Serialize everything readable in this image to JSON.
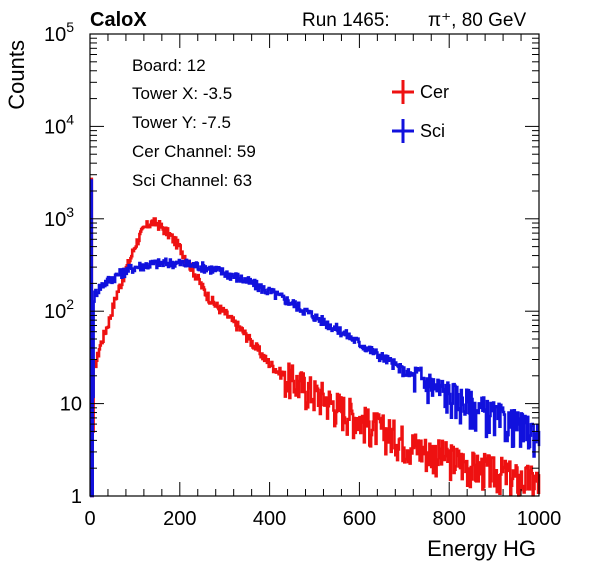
{
  "header": {
    "label": "CaloX",
    "run_text": "Run 1465:",
    "beam_text": "π⁺, 80 GeV"
  },
  "info": {
    "lines": [
      "Board: 12",
      "Tower X: -3.5",
      "Tower Y: -7.5",
      "Cer Channel: 59",
      "Sci Channel: 63"
    ]
  },
  "chart_data": {
    "type": "line",
    "xlabel": "Energy HG",
    "ylabel": "Counts",
    "xlim": [
      0,
      1000
    ],
    "ylim": [
      1,
      100000
    ],
    "yscale": "log",
    "xticks": [
      0,
      200,
      400,
      600,
      800,
      1000
    ],
    "xtick_labels": [
      "0",
      "200",
      "400",
      "600",
      "800",
      "1000"
    ],
    "yticks": [
      1,
      10,
      100,
      1000,
      10000,
      100000
    ],
    "ytick_labels": [
      {
        "base": "1",
        "exp": ""
      },
      {
        "base": "10",
        "exp": ""
      },
      {
        "base": "10",
        "exp": "2"
      },
      {
        "base": "10",
        "exp": "3"
      },
      {
        "base": "10",
        "exp": "4"
      },
      {
        "base": "10",
        "exp": "5"
      }
    ],
    "legend_position": "top-right",
    "series": [
      {
        "name": "Cer",
        "color": "#ee1111",
        "points": [
          [
            0,
            1
          ],
          [
            2,
            2700
          ],
          [
            4,
            1
          ],
          [
            8,
            25
          ],
          [
            12,
            28
          ],
          [
            16,
            32
          ],
          [
            20,
            40
          ],
          [
            30,
            55
          ],
          [
            40,
            75
          ],
          [
            50,
            110
          ],
          [
            60,
            160
          ],
          [
            70,
            210
          ],
          [
            80,
            290
          ],
          [
            90,
            380
          ],
          [
            100,
            520
          ],
          [
            110,
            650
          ],
          [
            120,
            780
          ],
          [
            130,
            880
          ],
          [
            140,
            920
          ],
          [
            150,
            880
          ],
          [
            160,
            800
          ],
          [
            170,
            720
          ],
          [
            180,
            640
          ],
          [
            190,
            560
          ],
          [
            200,
            480
          ],
          [
            210,
            400
          ],
          [
            220,
            330
          ],
          [
            230,
            270
          ],
          [
            240,
            220
          ],
          [
            250,
            180
          ],
          [
            260,
            150
          ],
          [
            270,
            130
          ],
          [
            280,
            115
          ],
          [
            290,
            105
          ],
          [
            300,
            95
          ],
          [
            310,
            85
          ],
          [
            320,
            75
          ],
          [
            330,
            68
          ],
          [
            340,
            60
          ],
          [
            350,
            52
          ],
          [
            360,
            46
          ],
          [
            370,
            40
          ],
          [
            380,
            35
          ],
          [
            390,
            30
          ],
          [
            400,
            27
          ],
          [
            420,
            22
          ],
          [
            440,
            19
          ],
          [
            460,
            17
          ],
          [
            480,
            15
          ],
          [
            500,
            13
          ],
          [
            520,
            12
          ],
          [
            540,
            10
          ],
          [
            560,
            9
          ],
          [
            580,
            8
          ],
          [
            600,
            7
          ],
          [
            620,
            6
          ],
          [
            640,
            5.5
          ],
          [
            660,
            5
          ],
          [
            680,
            4.5
          ],
          [
            700,
            4
          ],
          [
            720,
            3.6
          ],
          [
            740,
            3.2
          ],
          [
            760,
            3
          ],
          [
            780,
            2.8
          ],
          [
            800,
            2.6
          ],
          [
            820,
            2.4
          ],
          [
            840,
            2.2
          ],
          [
            860,
            2
          ],
          [
            880,
            2
          ],
          [
            900,
            1.8
          ],
          [
            920,
            1.8
          ],
          [
            940,
            1.6
          ],
          [
            960,
            1.5
          ],
          [
            980,
            1.5
          ],
          [
            1000,
            1.4
          ]
        ]
      },
      {
        "name": "Sci",
        "color": "#1111dd",
        "points": [
          [
            0,
            1
          ],
          [
            2,
            2600
          ],
          [
            4,
            1
          ],
          [
            8,
            140
          ],
          [
            12,
            160
          ],
          [
            20,
            180
          ],
          [
            30,
            200
          ],
          [
            40,
            215
          ],
          [
            50,
            230
          ],
          [
            60,
            245
          ],
          [
            70,
            260
          ],
          [
            80,
            275
          ],
          [
            90,
            290
          ],
          [
            100,
            300
          ],
          [
            120,
            315
          ],
          [
            140,
            325
          ],
          [
            160,
            330
          ],
          [
            180,
            335
          ],
          [
            200,
            330
          ],
          [
            220,
            322
          ],
          [
            240,
            310
          ],
          [
            260,
            295
          ],
          [
            280,
            278
          ],
          [
            300,
            260
          ],
          [
            320,
            240
          ],
          [
            340,
            220
          ],
          [
            360,
            200
          ],
          [
            380,
            180
          ],
          [
            400,
            162
          ],
          [
            420,
            145
          ],
          [
            440,
            130
          ],
          [
            460,
            115
          ],
          [
            480,
            100
          ],
          [
            500,
            88
          ],
          [
            520,
            77
          ],
          [
            540,
            68
          ],
          [
            560,
            60
          ],
          [
            580,
            52
          ],
          [
            600,
            45
          ],
          [
            620,
            39
          ],
          [
            640,
            34
          ],
          [
            660,
            30
          ],
          [
            680,
            26
          ],
          [
            700,
            22
          ],
          [
            720,
            20
          ],
          [
            740,
            18
          ],
          [
            760,
            16
          ],
          [
            780,
            14
          ],
          [
            800,
            12.5
          ],
          [
            820,
            11
          ],
          [
            840,
            10
          ],
          [
            860,
            9
          ],
          [
            880,
            8
          ],
          [
            900,
            7.2
          ],
          [
            920,
            6.5
          ],
          [
            940,
            6
          ],
          [
            960,
            5.5
          ],
          [
            980,
            5
          ],
          [
            1000,
            4.6
          ]
        ]
      }
    ]
  }
}
